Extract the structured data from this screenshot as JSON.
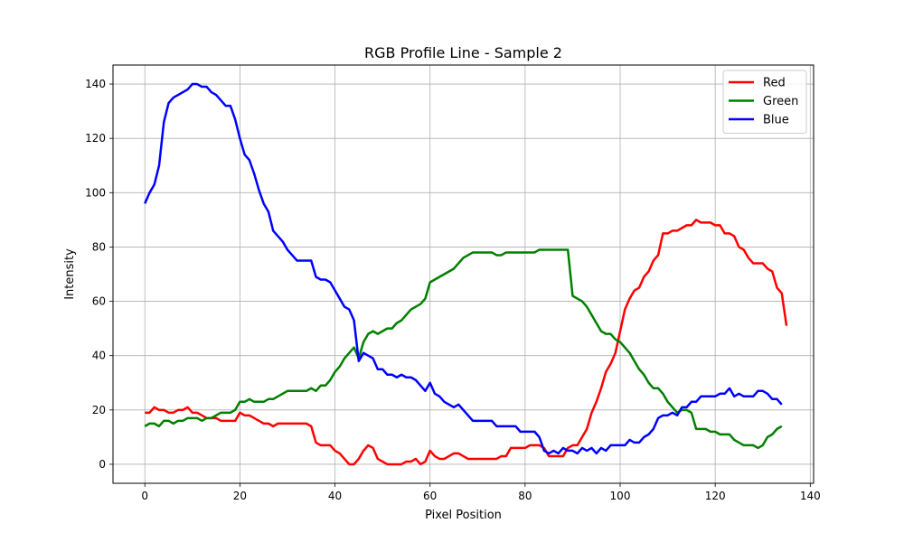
{
  "chart_data": {
    "type": "line",
    "title": "RGB Profile Line - Sample 2",
    "xlabel": "Pixel Position",
    "ylabel": "Intensity",
    "xlim": [
      -6.7,
      140.7
    ],
    "ylim": [
      -7,
      147
    ],
    "xticks": [
      0,
      20,
      40,
      60,
      80,
      100,
      120,
      140
    ],
    "yticks": [
      0,
      20,
      40,
      60,
      80,
      100,
      120,
      140
    ],
    "grid": true,
    "legend_position": "top-right",
    "series": [
      {
        "name": "Red",
        "color": "#ff0000",
        "values": [
          19,
          19,
          21,
          20,
          20,
          19,
          19,
          20,
          20,
          21,
          19,
          19,
          18,
          17,
          17,
          17,
          16,
          16,
          16,
          16,
          19,
          18,
          18,
          17,
          16,
          15,
          15,
          14,
          15,
          15,
          15,
          15,
          15,
          15,
          15,
          14,
          8,
          7,
          7,
          7,
          5,
          4,
          2,
          0,
          0,
          2,
          5,
          7,
          6,
          2,
          1,
          0,
          0,
          0,
          0,
          1,
          1,
          2,
          0,
          1,
          5,
          3,
          2,
          2,
          3,
          4,
          4,
          3,
          2,
          2,
          2,
          2,
          2,
          2,
          2,
          3,
          3,
          6,
          6,
          6,
          6,
          7,
          7,
          7,
          6,
          3,
          3,
          3,
          3,
          6,
          7,
          7,
          10,
          13,
          19,
          23,
          28,
          34,
          37,
          41,
          49,
          57,
          61,
          64,
          65,
          69,
          71,
          75,
          77,
          85,
          85,
          86,
          86,
          87,
          88,
          88,
          90,
          89,
          89,
          89,
          88,
          88,
          85,
          85,
          84,
          80,
          79,
          76,
          74,
          74,
          74,
          72,
          71,
          65,
          63,
          51
        ]
      },
      {
        "name": "Green",
        "color": "#008000",
        "values": [
          14,
          15,
          15,
          14,
          16,
          16,
          15,
          16,
          16,
          17,
          17,
          17,
          16,
          17,
          17,
          18,
          19,
          19,
          19,
          20,
          23,
          23,
          24,
          23,
          23,
          23,
          24,
          24,
          25,
          26,
          27,
          27,
          27,
          27,
          27,
          28,
          27,
          29,
          29,
          31,
          34,
          36,
          39,
          41,
          43,
          39,
          45,
          48,
          49,
          48,
          49,
          50,
          50,
          52,
          53,
          55,
          57,
          58,
          59,
          61,
          67,
          68,
          69,
          70,
          71,
          72,
          74,
          76,
          77,
          78,
          78,
          78,
          78,
          78,
          77,
          77,
          78,
          78,
          78,
          78,
          78,
          78,
          78,
          79,
          79,
          79,
          79,
          79,
          79,
          79,
          62,
          61,
          60,
          58,
          55,
          52,
          49,
          48,
          48,
          46,
          45,
          43,
          41,
          38,
          35,
          33,
          30,
          28,
          28,
          26,
          23,
          21,
          19,
          20,
          20,
          19,
          13,
          13,
          13,
          12,
          12,
          11,
          11,
          11,
          9,
          8,
          7,
          7,
          7,
          6,
          7,
          10,
          11,
          13,
          14
        ]
      },
      {
        "name": "Blue",
        "color": "#0000ff",
        "values": [
          96,
          100,
          103,
          110,
          126,
          133,
          135,
          136,
          137,
          138,
          140,
          140,
          139,
          139,
          137,
          136,
          134,
          132,
          132,
          127,
          120,
          114,
          112,
          107,
          101,
          96,
          93,
          86,
          84,
          82,
          79,
          77,
          75,
          75,
          75,
          75,
          69,
          68,
          68,
          67,
          64,
          61,
          58,
          57,
          53,
          38,
          41,
          40,
          39,
          35,
          35,
          33,
          33,
          32,
          33,
          32,
          32,
          31,
          29,
          27,
          30,
          26,
          25,
          23,
          22,
          21,
          22,
          20,
          18,
          16,
          16,
          16,
          16,
          16,
          14,
          14,
          14,
          14,
          14,
          12,
          12,
          12,
          12,
          10,
          5,
          4,
          5,
          4,
          6,
          5,
          5,
          4,
          6,
          5,
          6,
          4,
          6,
          5,
          7,
          7,
          7,
          7,
          9,
          8,
          8,
          10,
          11,
          13,
          17,
          18,
          18,
          19,
          18,
          21,
          21,
          23,
          23,
          25,
          25,
          25,
          25,
          26,
          26,
          28,
          25,
          26,
          25,
          25,
          25,
          27,
          27,
          26,
          24,
          24,
          22
        ]
      }
    ]
  }
}
